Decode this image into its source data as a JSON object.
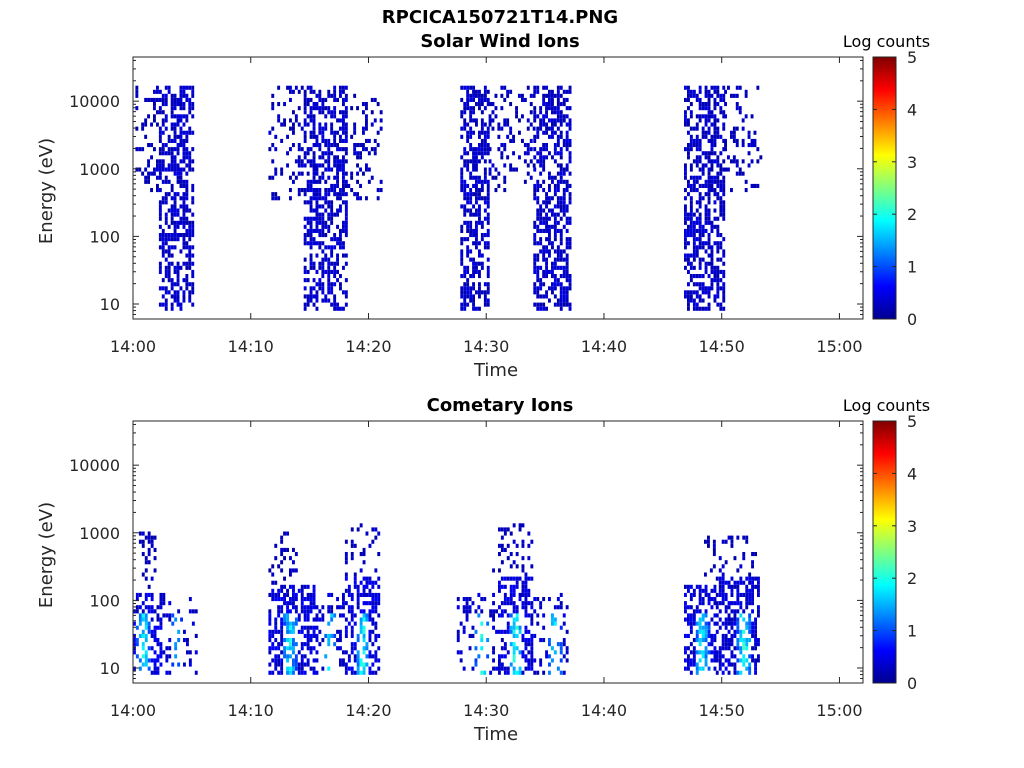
{
  "figure": {
    "title": "RPCICA150721T14.PNG"
  },
  "colormap": "jet",
  "chart_data": [
    {
      "type": "heatmap",
      "title": "Solar Wind Ions",
      "xlabel": "Time",
      "ylabel": "Energy (eV)",
      "x_ticks": [
        "14:00",
        "14:10",
        "14:20",
        "14:30",
        "14:40",
        "14:50",
        "15:00"
      ],
      "x_range_minutes": [
        0,
        62
      ],
      "y_scale": "log",
      "y_ticks": [
        "10",
        "100",
        "1000",
        "10000"
      ],
      "y_range": [
        6,
        45000
      ],
      "colorbar": {
        "label": "Log counts",
        "range": [
          0,
          5
        ],
        "ticks": [
          "0",
          "1",
          "2",
          "3",
          "4",
          "5"
        ]
      },
      "bursts": [
        {
          "start_min": 2.2,
          "end_min": 5.2,
          "emin": 7,
          "emax": 15000,
          "level": 0.35,
          "dense": true
        },
        {
          "start_min": 0.2,
          "end_min": 2.2,
          "emin": 400,
          "emax": 15000,
          "level": 0.3,
          "dense": false
        },
        {
          "start_min": 11.5,
          "end_min": 14.5,
          "emin": 300,
          "emax": 15000,
          "level": 0.3,
          "dense": false
        },
        {
          "start_min": 14.5,
          "end_min": 18.2,
          "emin": 7,
          "emax": 15000,
          "level": 0.35,
          "dense": true
        },
        {
          "start_min": 18.2,
          "end_min": 21.2,
          "emin": 300,
          "emax": 12000,
          "level": 0.3,
          "dense": false
        },
        {
          "start_min": 27.8,
          "end_min": 30.2,
          "emin": 7,
          "emax": 15000,
          "level": 0.35,
          "dense": true
        },
        {
          "start_min": 30.2,
          "end_min": 34.0,
          "emin": 400,
          "emax": 15000,
          "level": 0.3,
          "dense": false
        },
        {
          "start_min": 34.0,
          "end_min": 37.2,
          "emin": 7,
          "emax": 15000,
          "level": 0.35,
          "dense": true
        },
        {
          "start_min": 46.8,
          "end_min": 50.2,
          "emin": 7,
          "emax": 15000,
          "level": 0.35,
          "dense": true
        },
        {
          "start_min": 50.2,
          "end_min": 53.3,
          "emin": 400,
          "emax": 15000,
          "level": 0.3,
          "dense": false
        }
      ]
    },
    {
      "type": "heatmap",
      "title": "Cometary Ions",
      "xlabel": "Time",
      "ylabel": "Energy (eV)",
      "x_ticks": [
        "14:00",
        "14:10",
        "14:20",
        "14:30",
        "14:40",
        "14:50",
        "15:00"
      ],
      "x_range_minutes": [
        0,
        62
      ],
      "y_scale": "log",
      "y_ticks": [
        "10",
        "100",
        "1000",
        "10000"
      ],
      "y_range": [
        6,
        45000
      ],
      "colorbar": {
        "label": "Log counts",
        "range": [
          0,
          5
        ],
        "ticks": [
          "0",
          "1",
          "2",
          "3",
          "4",
          "5"
        ]
      },
      "bursts": [
        {
          "start_min": 0,
          "end_min": 2.5,
          "emin": 7,
          "emax": 120,
          "level": 0.45,
          "dense": true,
          "core_min": 0.8,
          "core_level": 1.8
        },
        {
          "start_min": 0.5,
          "end_min": 2.0,
          "emin": 120,
          "emax": 1000,
          "level": 0.3,
          "dense": false
        },
        {
          "start_min": 2.5,
          "end_min": 5.3,
          "emin": 7,
          "emax": 120,
          "level": 0.4,
          "dense": false,
          "core_min": 3.6,
          "core_level": 1.4
        },
        {
          "start_min": 11.5,
          "end_min": 15.5,
          "emin": 7,
          "emax": 150,
          "level": 0.45,
          "dense": true,
          "core_min": 13.2,
          "core_level": 1.8
        },
        {
          "start_min": 11.5,
          "end_min": 14.0,
          "emin": 150,
          "emax": 1000,
          "level": 0.3,
          "dense": false
        },
        {
          "start_min": 15.5,
          "end_min": 18.0,
          "emin": 7,
          "emax": 120,
          "level": 0.4,
          "dense": false,
          "core_min": 16.6,
          "core_level": 1.7
        },
        {
          "start_min": 18.0,
          "end_min": 21.0,
          "emin": 7,
          "emax": 200,
          "level": 0.45,
          "dense": true,
          "core_min": 19.4,
          "core_level": 1.9
        },
        {
          "start_min": 18.0,
          "end_min": 21.0,
          "emin": 200,
          "emax": 1200,
          "level": 0.3,
          "dense": false
        },
        {
          "start_min": 27.5,
          "end_min": 31.0,
          "emin": 7,
          "emax": 120,
          "level": 0.4,
          "dense": false,
          "core_min": 29.5,
          "core_level": 1.9
        },
        {
          "start_min": 31.0,
          "end_min": 34.0,
          "emin": 7,
          "emax": 200,
          "level": 0.45,
          "dense": true,
          "core_min": 32.4,
          "core_level": 2.0
        },
        {
          "start_min": 30.5,
          "end_min": 34.0,
          "emin": 200,
          "emax": 1200,
          "level": 0.3,
          "dense": false
        },
        {
          "start_min": 34.0,
          "end_min": 37.0,
          "emin": 7,
          "emax": 120,
          "level": 0.4,
          "dense": false,
          "core_min": 35.7,
          "core_level": 1.8
        },
        {
          "start_min": 46.8,
          "end_min": 49.5,
          "emin": 7,
          "emax": 150,
          "level": 0.45,
          "dense": true,
          "core_min": 48.2,
          "core_level": 1.8
        },
        {
          "start_min": 49.5,
          "end_min": 53.2,
          "emin": 7,
          "emax": 200,
          "level": 0.4,
          "dense": true,
          "core_min": 51.8,
          "core_level": 2.0
        },
        {
          "start_min": 48.5,
          "end_min": 53.0,
          "emin": 200,
          "emax": 900,
          "level": 0.3,
          "dense": false
        }
      ]
    }
  ]
}
